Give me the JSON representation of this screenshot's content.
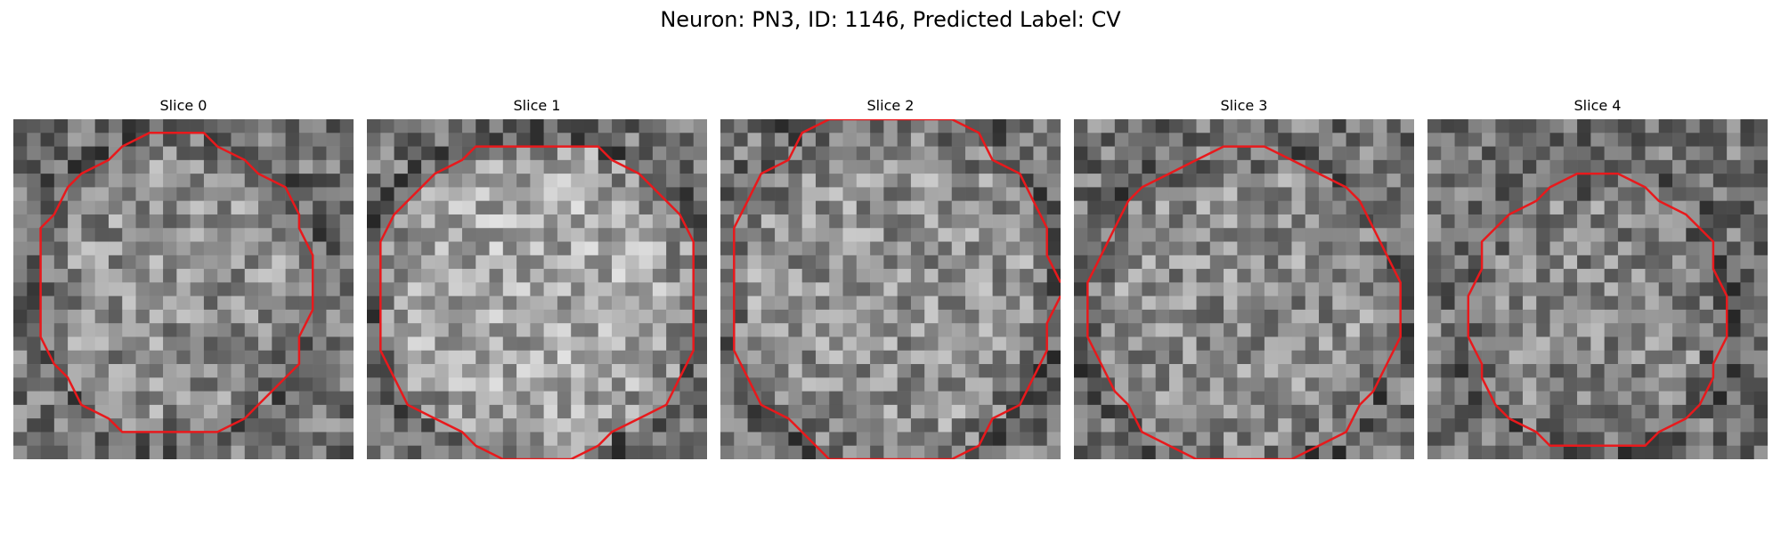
{
  "figure": {
    "title": "Neuron: PN3, ID: 1146, Predicted Label: CV"
  },
  "panels": [
    {
      "title": "Slice 0"
    },
    {
      "title": "Slice 1"
    },
    {
      "title": "Slice 2"
    },
    {
      "title": "Slice 3"
    },
    {
      "title": "Slice 4"
    }
  ],
  "colors": {
    "contour": "#e8191c",
    "colormap": "grayscale"
  }
}
